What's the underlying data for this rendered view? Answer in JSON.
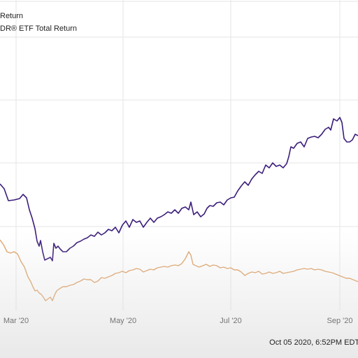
{
  "chart_data": {
    "type": "line",
    "title": "",
    "xlabel": "",
    "ylabel": "",
    "x_ticks": [
      "Mar '20",
      "May '20",
      "Jul '20",
      "Sep '20"
    ],
    "series": [
      {
        "name": "Return",
        "color": "#3b1d7a",
        "values": [
          [
            0,
            263
          ],
          [
            6,
            270
          ],
          [
            12,
            287
          ],
          [
            20,
            286
          ],
          [
            28,
            284
          ],
          [
            33,
            278
          ],
          [
            38,
            283
          ],
          [
            42,
            300
          ],
          [
            46,
            312
          ],
          [
            50,
            327
          ],
          [
            53,
            345
          ],
          [
            56,
            352
          ],
          [
            58,
            344
          ],
          [
            61,
            360
          ],
          [
            64,
            372
          ],
          [
            68,
            370
          ],
          [
            72,
            368
          ],
          [
            75,
            373
          ],
          [
            77,
            348
          ],
          [
            80,
            355
          ],
          [
            83,
            352
          ],
          [
            86,
            356
          ],
          [
            90,
            360
          ],
          [
            95,
            360
          ],
          [
            100,
            355
          ],
          [
            105,
            352
          ],
          [
            110,
            347
          ],
          [
            115,
            345
          ],
          [
            120,
            342
          ],
          [
            125,
            340
          ],
          [
            130,
            336
          ],
          [
            135,
            338
          ],
          [
            140,
            332
          ],
          [
            145,
            336
          ],
          [
            150,
            333
          ],
          [
            155,
            328
          ],
          [
            160,
            330
          ],
          [
            165,
            325
          ],
          [
            170,
            333
          ],
          [
            175,
            322
          ],
          [
            180,
            316
          ],
          [
            185,
            325
          ],
          [
            190,
            314
          ],
          [
            195,
            318
          ],
          [
            200,
            316
          ],
          [
            205,
            325
          ],
          [
            210,
            318
          ],
          [
            215,
            312
          ],
          [
            220,
            318
          ],
          [
            225,
            312
          ],
          [
            230,
            310
          ],
          [
            235,
            307
          ],
          [
            240,
            303
          ],
          [
            245,
            305
          ],
          [
            250,
            300
          ],
          [
            255,
            305
          ],
          [
            260,
            298
          ],
          [
            265,
            296
          ],
          [
            270,
            300
          ],
          [
            273,
            289
          ],
          [
            277,
            307
          ],
          [
            282,
            303
          ],
          [
            287,
            310
          ],
          [
            292,
            306
          ],
          [
            296,
            298
          ],
          [
            300,
            294
          ],
          [
            305,
            295
          ],
          [
            310,
            290
          ],
          [
            315,
            289
          ],
          [
            320,
            293
          ],
          [
            325,
            286
          ],
          [
            330,
            283
          ],
          [
            335,
            282
          ],
          [
            340,
            273
          ],
          [
            345,
            266
          ],
          [
            350,
            260
          ],
          [
            355,
            265
          ],
          [
            360,
            256
          ],
          [
            365,
            250
          ],
          [
            370,
            245
          ],
          [
            375,
            248
          ],
          [
            380,
            236
          ],
          [
            385,
            240
          ],
          [
            390,
            233
          ],
          [
            395,
            238
          ],
          [
            400,
            236
          ],
          [
            405,
            240
          ],
          [
            410,
            234
          ],
          [
            413,
            224
          ],
          [
            416,
            210
          ],
          [
            420,
            212
          ],
          [
            425,
            205
          ],
          [
            430,
            203
          ],
          [
            435,
            210
          ],
          [
            440,
            198
          ],
          [
            445,
            196
          ],
          [
            450,
            195
          ],
          [
            455,
            197
          ],
          [
            460,
            192
          ],
          [
            465,
            185
          ],
          [
            470,
            182
          ],
          [
            473,
            186
          ],
          [
            477,
            170
          ],
          [
            482,
            173
          ],
          [
            486,
            168
          ],
          [
            489,
            175
          ],
          [
            492,
            198
          ],
          [
            496,
            203
          ],
          [
            500,
            203
          ],
          [
            504,
            200
          ],
          [
            508,
            192
          ],
          [
            512,
            194
          ]
        ]
      },
      {
        "name": "ETF Total Return",
        "color": "#e0a46b",
        "values": [
          [
            0,
            343
          ],
          [
            5,
            350
          ],
          [
            10,
            360
          ],
          [
            15,
            362
          ],
          [
            20,
            360
          ],
          [
            25,
            363
          ],
          [
            30,
            374
          ],
          [
            35,
            382
          ],
          [
            40,
            396
          ],
          [
            44,
            403
          ],
          [
            47,
            410
          ],
          [
            50,
            416
          ],
          [
            53,
            415
          ],
          [
            56,
            419
          ],
          [
            59,
            421
          ],
          [
            62,
            425
          ],
          [
            65,
            430
          ],
          [
            68,
            428
          ],
          [
            72,
            425
          ],
          [
            75,
            430
          ],
          [
            78,
            422
          ],
          [
            81,
            416
          ],
          [
            85,
            413
          ],
          [
            90,
            410
          ],
          [
            95,
            410
          ],
          [
            100,
            408
          ],
          [
            105,
            407
          ],
          [
            110,
            404
          ],
          [
            115,
            402
          ],
          [
            120,
            399
          ],
          [
            125,
            400
          ],
          [
            130,
            400
          ],
          [
            135,
            404
          ],
          [
            140,
            402
          ],
          [
            145,
            397
          ],
          [
            150,
            398
          ],
          [
            155,
            396
          ],
          [
            160,
            394
          ],
          [
            165,
            391
          ],
          [
            170,
            390
          ],
          [
            175,
            388
          ],
          [
            180,
            390
          ],
          [
            185,
            387
          ],
          [
            190,
            386
          ],
          [
            195,
            384
          ],
          [
            200,
            385
          ],
          [
            205,
            389
          ],
          [
            210,
            387
          ],
          [
            215,
            385
          ],
          [
            220,
            386
          ],
          [
            225,
            383
          ],
          [
            230,
            382
          ],
          [
            235,
            381
          ],
          [
            240,
            382
          ],
          [
            245,
            380
          ],
          [
            250,
            379
          ],
          [
            255,
            380
          ],
          [
            260,
            377
          ],
          [
            265,
            370
          ],
          [
            270,
            360
          ],
          [
            273,
            365
          ],
          [
            276,
            378
          ],
          [
            280,
            380
          ],
          [
            285,
            382
          ],
          [
            290,
            380
          ],
          [
            295,
            378
          ],
          [
            300,
            381
          ],
          [
            305,
            379
          ],
          [
            310,
            380
          ],
          [
            315,
            383
          ],
          [
            320,
            382
          ],
          [
            325,
            384
          ],
          [
            330,
            383
          ],
          [
            335,
            386
          ],
          [
            340,
            386
          ],
          [
            345,
            389
          ],
          [
            350,
            394
          ],
          [
            355,
            391
          ],
          [
            360,
            389
          ],
          [
            365,
            390
          ],
          [
            370,
            388
          ],
          [
            375,
            392
          ],
          [
            380,
            391
          ],
          [
            385,
            389
          ],
          [
            390,
            391
          ],
          [
            395,
            390
          ],
          [
            400,
            388
          ],
          [
            405,
            391
          ],
          [
            410,
            390
          ],
          [
            415,
            389
          ],
          [
            420,
            388
          ],
          [
            425,
            386
          ],
          [
            430,
            385
          ],
          [
            435,
            384
          ],
          [
            440,
            385
          ],
          [
            445,
            384
          ],
          [
            450,
            386
          ],
          [
            455,
            385
          ],
          [
            460,
            386
          ],
          [
            465,
            388
          ],
          [
            470,
            389
          ],
          [
            475,
            390
          ],
          [
            480,
            392
          ],
          [
            485,
            394
          ],
          [
            490,
            396
          ],
          [
            495,
            398
          ],
          [
            500,
            398
          ],
          [
            505,
            400
          ],
          [
            510,
            402
          ],
          [
            512,
            403
          ]
        ]
      }
    ],
    "legend": [
      "Return",
      "DR® ETF Total Return"
    ],
    "grid": true,
    "footer_text": "Oct 05 2020, 6:52PM EDT."
  }
}
